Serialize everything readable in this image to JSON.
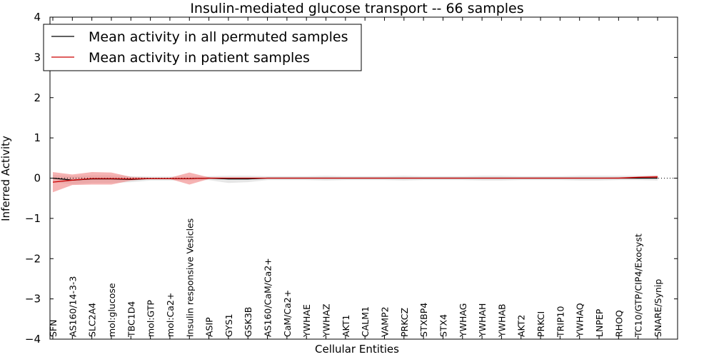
{
  "chart_data": {
    "type": "line",
    "title": "Insulin-mediated glucose transport -- 66 samples",
    "xlabel": "Cellular Entities",
    "ylabel": "Inferred Activity",
    "ylim": [
      -4,
      4
    ],
    "yticks": [
      -4,
      -3,
      -2,
      -1,
      0,
      1,
      2,
      3,
      4
    ],
    "ytick_labels": [
      "−4",
      "−3",
      "−2",
      "−1",
      "0",
      "1",
      "2",
      "3",
      "4"
    ],
    "legend_position": "top-left",
    "categories": [
      "SFN",
      "AS160/14-3-3",
      "SLC2A4",
      "mol:glucose",
      "TBC1D4",
      "mol:GTP",
      "mol:Ca2+",
      "Insulin responsive Vesicles",
      "ASIP",
      "GYS1",
      "GSK3B",
      "AS160/CaM/Ca2+",
      "CaM/Ca2+",
      "YWHAE",
      "YWHAZ",
      "AKT1",
      "CALM1",
      "VAMP2",
      "PRKCZ",
      "STXBP4",
      "STX4",
      "YWHAG",
      "YWHAH",
      "YWHAB",
      "AKT2",
      "PRKCI",
      "TRIP10",
      "YWHAQ",
      "LNPEP",
      "RHOQ",
      "TC10/GTP/CIP4/Exocyst",
      "SNARE/Synip"
    ],
    "series": [
      {
        "name": "Mean activity in all permuted samples",
        "color": "#000000",
        "values": [
          0.0,
          -0.05,
          -0.02,
          -0.02,
          -0.03,
          -0.01,
          -0.01,
          -0.01,
          0.0,
          -0.02,
          -0.02,
          0.0,
          0.0,
          0.0,
          0.0,
          0.0,
          0.0,
          0.0,
          0.0,
          0.0,
          0.0,
          0.0,
          0.0,
          0.0,
          0.0,
          0.0,
          0.0,
          0.0,
          0.0,
          0.0,
          0.0,
          0.0
        ],
        "lower": [
          -0.1,
          -0.15,
          -0.12,
          -0.12,
          -0.1,
          -0.06,
          -0.06,
          -0.06,
          -0.05,
          -0.12,
          -0.1,
          -0.05,
          -0.05,
          -0.05,
          -0.06,
          -0.05,
          -0.05,
          -0.05,
          -0.06,
          -0.05,
          -0.05,
          -0.05,
          -0.06,
          -0.06,
          -0.05,
          -0.05,
          -0.05,
          -0.06,
          -0.06,
          -0.05,
          -0.05,
          -0.06
        ],
        "upper": [
          0.08,
          0.05,
          0.07,
          0.07,
          0.05,
          0.04,
          0.04,
          0.04,
          0.05,
          0.06,
          0.06,
          0.05,
          0.05,
          0.05,
          0.06,
          0.05,
          0.05,
          0.05,
          0.06,
          0.05,
          0.05,
          0.05,
          0.06,
          0.06,
          0.05,
          0.05,
          0.05,
          0.06,
          0.06,
          0.06,
          0.06,
          0.07
        ]
      },
      {
        "name": "Mean activity in patient samples",
        "color": "#cc0000",
        "fill": "#f08080",
        "values": [
          -0.1,
          -0.05,
          -0.01,
          -0.01,
          -0.02,
          -0.01,
          -0.01,
          -0.01,
          0.0,
          0.0,
          0.0,
          0.0,
          0.0,
          0.0,
          0.0,
          0.0,
          0.0,
          0.0,
          0.0,
          0.0,
          0.0,
          0.0,
          0.0,
          0.0,
          0.0,
          0.0,
          0.0,
          0.0,
          0.0,
          0.0,
          0.02,
          0.03
        ],
        "lower": [
          -0.35,
          -0.17,
          -0.16,
          -0.16,
          -0.06,
          -0.02,
          -0.02,
          -0.16,
          -0.02,
          -0.02,
          -0.01,
          -0.01,
          -0.01,
          -0.01,
          -0.01,
          -0.01,
          -0.01,
          -0.01,
          -0.01,
          -0.01,
          -0.01,
          -0.01,
          -0.01,
          -0.01,
          -0.01,
          -0.01,
          -0.01,
          -0.01,
          -0.01,
          -0.01,
          -0.01,
          0.0
        ],
        "upper": [
          0.15,
          0.09,
          0.15,
          0.14,
          0.03,
          0.01,
          0.01,
          0.14,
          0.02,
          0.01,
          0.01,
          0.01,
          0.01,
          0.01,
          0.01,
          0.01,
          0.01,
          0.01,
          0.01,
          0.01,
          0.01,
          0.01,
          0.01,
          0.01,
          0.01,
          0.01,
          0.01,
          0.01,
          0.01,
          0.02,
          0.04,
          0.06
        ]
      }
    ]
  }
}
